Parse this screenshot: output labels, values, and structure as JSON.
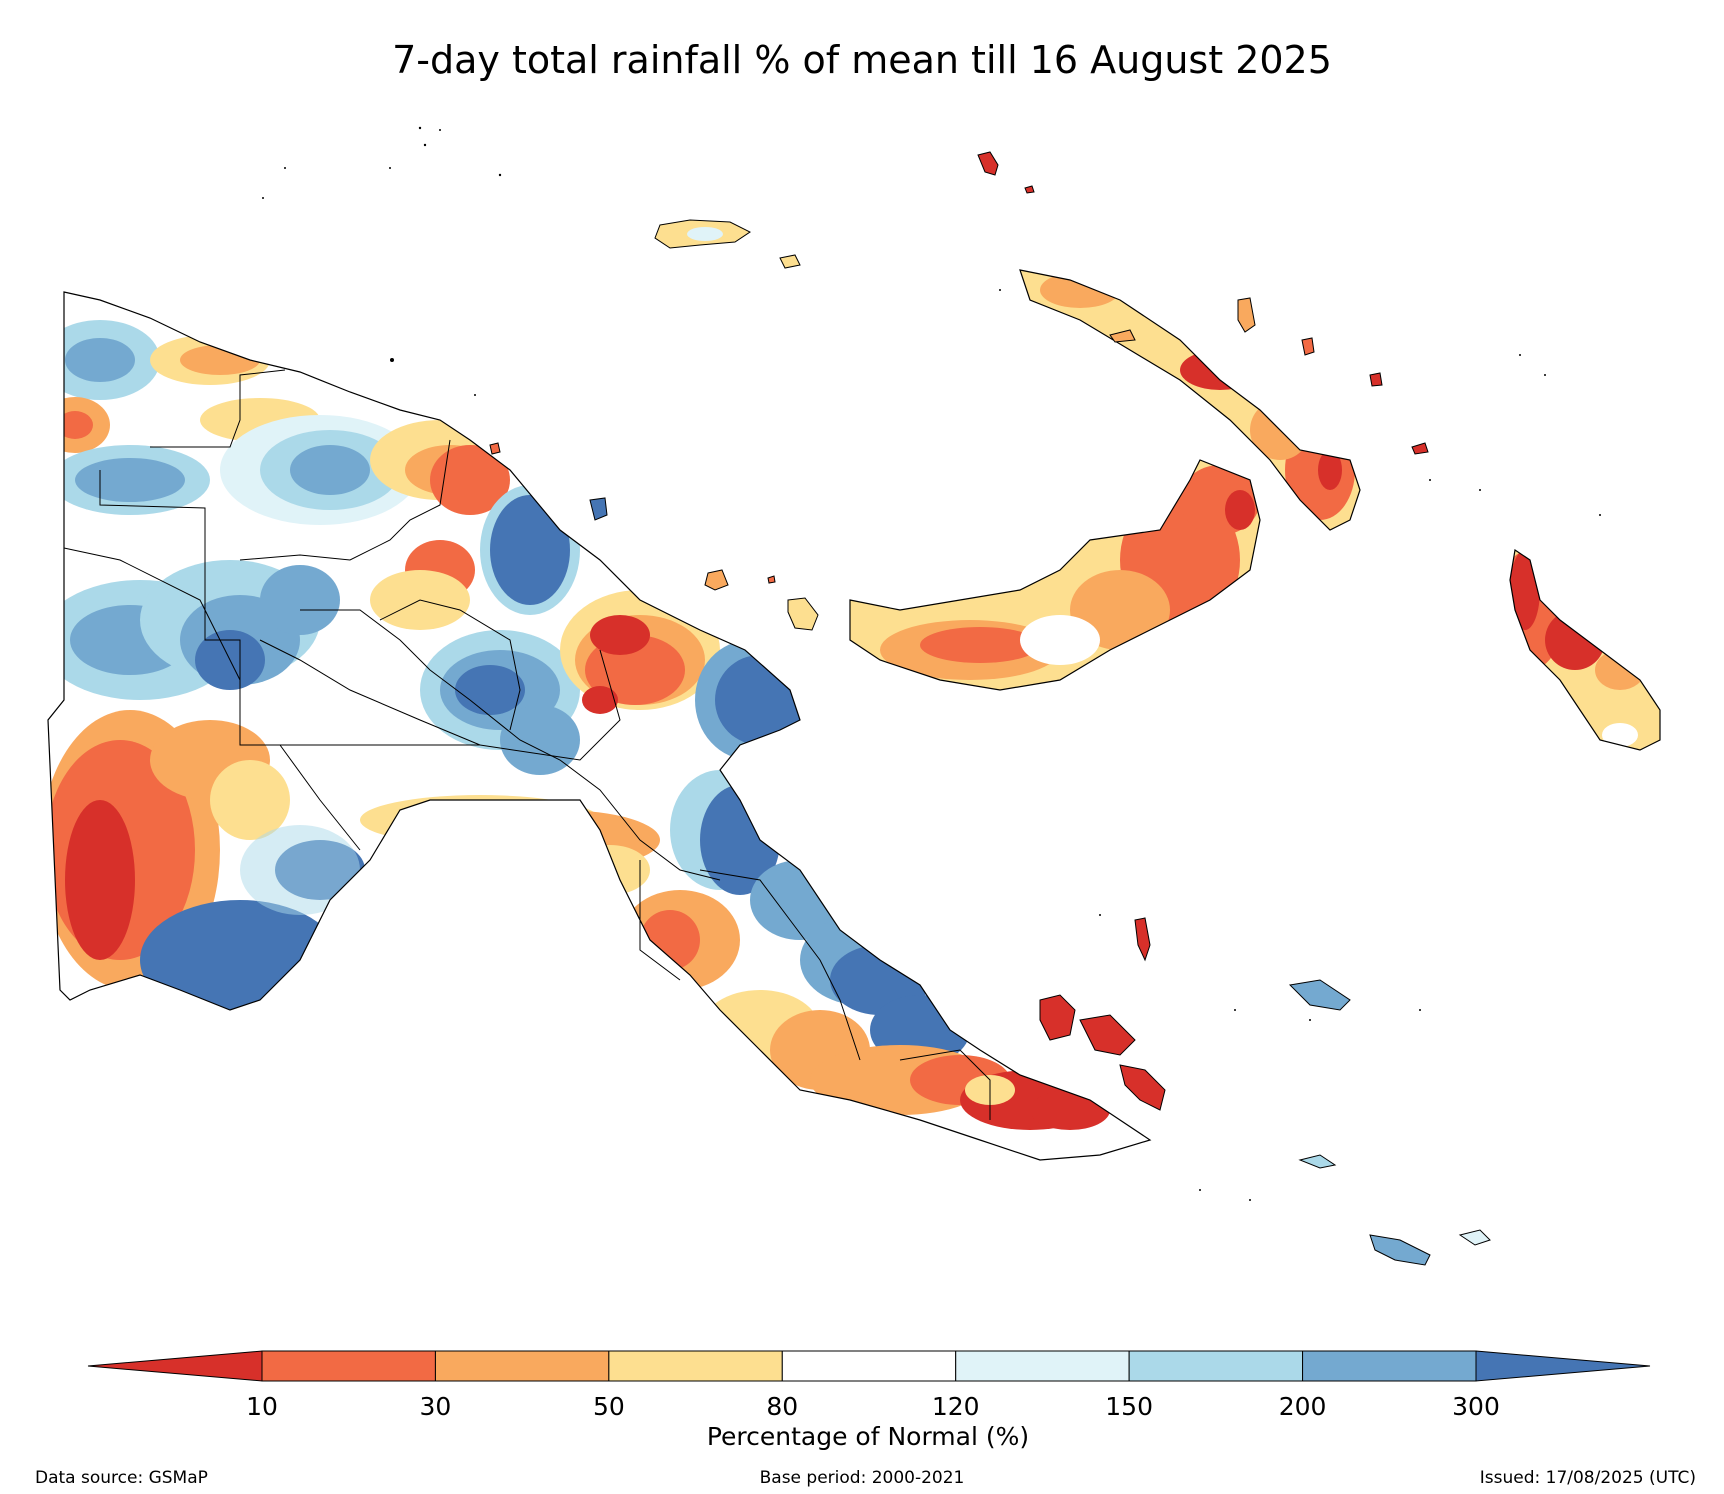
{
  "title": "7-day total rainfall % of mean till 16 August 2025",
  "legend": {
    "label": "Percentage of Normal (%)",
    "ticks": [
      "10",
      "30",
      "50",
      "80",
      "120",
      "150",
      "200",
      "300"
    ],
    "bins": [
      {
        "range": "<10",
        "color": "#d7302a"
      },
      {
        "range": "10-30",
        "color": "#f26a44"
      },
      {
        "range": "30-50",
        "color": "#f9a95e"
      },
      {
        "range": "50-80",
        "color": "#fddf90"
      },
      {
        "range": "80-120",
        "color": "#ffffff"
      },
      {
        "range": "120-150",
        "color": "#e0f3f8"
      },
      {
        "range": "150-200",
        "color": "#abd9e9"
      },
      {
        "range": "200-300",
        "color": "#74a9d0"
      },
      {
        "range": ">300",
        "color": "#4575b4"
      }
    ]
  },
  "footer": {
    "source": "Data source: GSMaP",
    "base_period": "Base period: 2000-2021",
    "issued": "Issued: 17/08/2025 (UTC)"
  }
}
